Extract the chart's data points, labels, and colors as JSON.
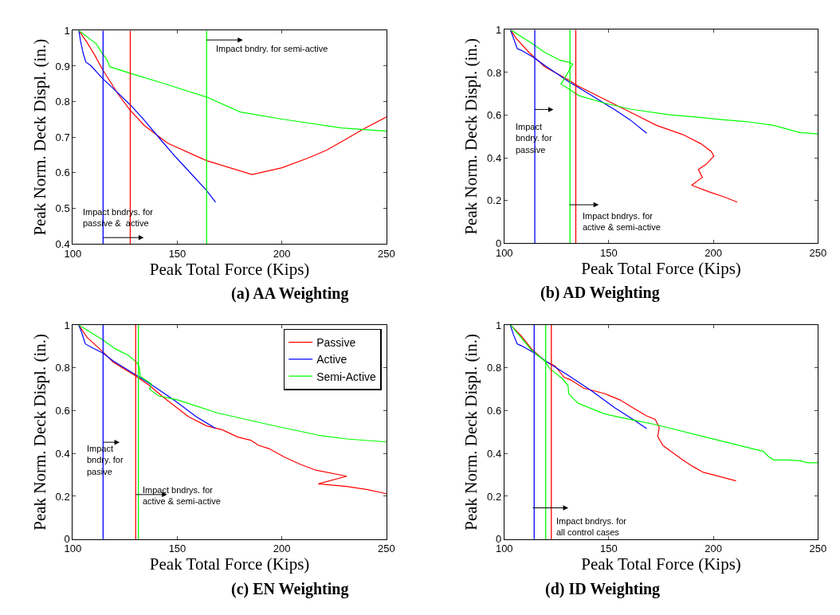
{
  "chart_data": [
    {
      "type": "line",
      "title": "(a) AA Weighting",
      "xlabel": "Peak Total Force (Kips)",
      "ylabel": "Peak Norm. Deck Displ. (in.)",
      "xlim": [
        100,
        250
      ],
      "xticks": [
        100,
        150,
        200,
        250
      ],
      "ylim": [
        0.4,
        1
      ],
      "yticks": [
        0.4,
        0.5,
        0.6,
        0.7,
        0.8,
        0.9,
        1
      ],
      "grid": false,
      "marker": "none",
      "line_style": "solid",
      "series": [
        {
          "color": "#ff0000",
          "x": [
            102.9,
            106.8,
            110.6,
            114.3,
            121.7,
            127.3,
            134.2,
            145.4,
            164.0,
            185.7,
            200.0,
            212.4,
            221.2,
            231.1,
            238.6,
            250
          ],
          "values": [
            1.0,
            0.967,
            0.93,
            0.89,
            0.821,
            0.777,
            0.733,
            0.683,
            0.634,
            0.595,
            0.614,
            0.641,
            0.663,
            0.696,
            0.722,
            0.757
          ]
        },
        {
          "color": "#0000ff",
          "x": [
            102.9,
            103.7,
            104.9,
            106.2,
            108.7,
            114.3,
            121.7,
            128.0,
            134.2,
            141.6,
            149.1,
            156.5,
            164.0,
            168.3
          ],
          "values": [
            1.0,
            0.971,
            0.938,
            0.912,
            0.901,
            0.865,
            0.824,
            0.788,
            0.748,
            0.696,
            0.645,
            0.598,
            0.55,
            0.517
          ]
        },
        {
          "color": "#00ff00",
          "x": [
            102.9,
            111.2,
            114.3,
            116.2,
            117.8,
            128.0,
            144.1,
            164.0,
            180.1,
            200.0,
            228.6,
            250
          ],
          "values": [
            1.0,
            0.963,
            0.934,
            0.92,
            0.898,
            0.879,
            0.85,
            0.813,
            0.771,
            0.751,
            0.726,
            0.717
          ]
        }
      ],
      "ref_lines": [
        {
          "axis": "x",
          "value": 114.5,
          "color": "#0000ff"
        },
        {
          "axis": "x",
          "value": 127.5,
          "color": "#ff0000"
        },
        {
          "axis": "x",
          "value": 164.0,
          "color": "#00ff00"
        }
      ],
      "annotations": [
        "Impact bndry. for semi-active",
        "Impact bndrys. for\npassive &  active"
      ]
    },
    {
      "type": "line",
      "title": "(b) AD Weighting",
      "xlabel": "Peak Total Force (Kips)",
      "ylabel": "Peak Norm. Deck Displ. (in.)",
      "xlim": [
        100,
        250
      ],
      "xticks": [
        100,
        150,
        200,
        250
      ],
      "ylim": [
        0,
        1
      ],
      "yticks": [
        0,
        0.2,
        0.4,
        0.6,
        0.8,
        1
      ],
      "grid": false,
      "marker": "none",
      "line_style": "solid",
      "series": [
        {
          "color": "#ff0000",
          "x": [
            103.1,
            105.6,
            111.8,
            119.3,
            130.5,
            135.5,
            148,
            160.4,
            172.8,
            185.3,
            194,
            199,
            200.2,
            196.5,
            192.8,
            194.7,
            189.6,
            197.7,
            205.2,
            211.4
          ],
          "values": [
            0.998,
            0.961,
            0.894,
            0.827,
            0.766,
            0.735,
            0.674,
            0.613,
            0.552,
            0.509,
            0.466,
            0.429,
            0.408,
            0.369,
            0.345,
            0.308,
            0.271,
            0.241,
            0.216,
            0.192
          ]
        },
        {
          "color": "#0000ff",
          "x": [
            102.9,
            104.4,
            106.2,
            108.1,
            114.3,
            119.3,
            130.5,
            141.7,
            152.9,
            160.4,
            168.1
          ],
          "values": [
            1.0,
            0.961,
            0.912,
            0.904,
            0.869,
            0.833,
            0.759,
            0.692,
            0.625,
            0.576,
            0.515
          ]
        },
        {
          "color": "#00ff00",
          "x": [
            103.1,
            113.1,
            119.3,
            126.8,
            131.1,
            132.7,
            129.9,
            127.1,
            130.5,
            135.5,
            148,
            160.4,
            179,
            191.5,
            204,
            216.4,
            228.8,
            241.3,
            250
          ],
          "values": [
            1.0,
            0.937,
            0.894,
            0.857,
            0.847,
            0.839,
            0.79,
            0.745,
            0.725,
            0.692,
            0.656,
            0.628,
            0.601,
            0.591,
            0.579,
            0.569,
            0.552,
            0.518,
            0.512
          ]
        }
      ],
      "ref_lines": [
        {
          "axis": "x",
          "value": 114.6,
          "color": "#0000ff"
        },
        {
          "axis": "x",
          "value": 131.4,
          "color": "#00ff00"
        },
        {
          "axis": "x",
          "value": 134.2,
          "color": "#ff0000"
        }
      ],
      "annotations": [
        "Impact\nbndry. for\npassive",
        "Impact bndrys. for\nactive & semi-active"
      ]
    },
    {
      "type": "line",
      "title": "(c) EN Weighting",
      "xlabel": "Peak Total Force (Kips)",
      "ylabel": "Peak Norm. Deck Displ. (in.)",
      "xlim": [
        100,
        250
      ],
      "xticks": [
        100,
        150,
        200,
        250
      ],
      "ylim": [
        0,
        1
      ],
      "yticks": [
        0,
        0.2,
        0.4,
        0.6,
        0.8,
        1
      ],
      "grid": false,
      "legend": "top right",
      "marker": "none",
      "line_style": "solid",
      "series": [
        {
          "name": "Passive",
          "color": "#ff0000",
          "x": [
            102.9,
            106.8,
            114.3,
            119.3,
            130.4,
            136.6,
            144.1,
            155.3,
            164.0,
            171.4,
            178.9,
            185.1,
            188.8,
            193.8,
            201.2,
            208.7,
            216.2,
            231.0,
            217.4,
            231.0,
            241.0,
            250
          ],
          "values": [
            1.0,
            0.943,
            0.876,
            0.827,
            0.76,
            0.718,
            0.657,
            0.572,
            0.529,
            0.511,
            0.477,
            0.462,
            0.438,
            0.423,
            0.383,
            0.35,
            0.322,
            0.294,
            0.258,
            0.246,
            0.231,
            0.212
          ]
        },
        {
          "name": "Active",
          "color": "#0000ff",
          "x": [
            102.9,
            104.4,
            106.0,
            109.3,
            114.3,
            119.3,
            130.4,
            139.1,
            149.1,
            159.0,
            168.3
          ],
          "values": [
            1.0,
            0.961,
            0.912,
            0.894,
            0.87,
            0.833,
            0.766,
            0.712,
            0.645,
            0.572,
            0.517
          ]
        },
        {
          "name": "Semi-Active",
          "color": "#00ff00",
          "x": [
            102.9,
            114.3,
            120.5,
            126.7,
            130.4,
            131.7,
            132.3,
            137.7,
            136.7,
            141.1,
            150.3,
            169.0,
            193.8,
            218.7,
            231.0,
            250
          ],
          "values": [
            1.0,
            0.931,
            0.888,
            0.858,
            0.827,
            0.809,
            0.76,
            0.724,
            0.7,
            0.669,
            0.65,
            0.59,
            0.535,
            0.483,
            0.468,
            0.454
          ]
        }
      ],
      "ref_lines": [
        {
          "axis": "x",
          "value": 114.5,
          "color": "#0000ff"
        },
        {
          "axis": "x",
          "value": 130.1,
          "color": "#ff0000"
        },
        {
          "axis": "x",
          "value": 131.4,
          "color": "#00ff00"
        }
      ],
      "annotations": [
        "Impact\nbndry. for\npasive",
        "Impact bndrys. for\nactive & semi-active"
      ]
    },
    {
      "type": "line",
      "title": "(d) ID Weighting",
      "xlabel": "Peak Total Force (Kips)",
      "ylabel": "Peak Norm. Deck Displ. (in.)",
      "xlim": [
        100,
        250
      ],
      "xticks": [
        100,
        150,
        200,
        250
      ],
      "ylim": [
        0,
        1
      ],
      "yticks": [
        0,
        0.2,
        0.4,
        0.6,
        0.8,
        1
      ],
      "grid": false,
      "marker": "none",
      "line_style": "solid",
      "series": [
        {
          "color": "#ff0000",
          "x": [
            103.1,
            108.1,
            113.1,
            119.3,
            124.3,
            128.6,
            131.7,
            138,
            147.9,
            155.4,
            161.6,
            167.8,
            172.2,
            174.1,
            173.4,
            175.9,
            180.3,
            185.3,
            190.2,
            195.2,
            201.5,
            210.8
          ],
          "values": [
            1.0,
            0.949,
            0.888,
            0.833,
            0.809,
            0.756,
            0.744,
            0.705,
            0.68,
            0.65,
            0.613,
            0.577,
            0.559,
            0.522,
            0.479,
            0.437,
            0.406,
            0.37,
            0.339,
            0.312,
            0.296,
            0.272
          ]
        },
        {
          "color": "#0000ff",
          "x": [
            102.9,
            104.4,
            106.2,
            108.1,
            114.3,
            120.5,
            130.5,
            141.7,
            152.9,
            161.6,
            168.1
          ],
          "values": [
            1.0,
            0.955,
            0.912,
            0.904,
            0.87,
            0.827,
            0.766,
            0.693,
            0.613,
            0.559,
            0.516
          ]
        },
        {
          "color": "#00ff00",
          "x": [
            103.1,
            113.1,
            119.3,
            121.8,
            128.0,
            130.5,
            130.8,
            132.4,
            135.5,
            148,
            160.4,
            172.8,
            197.7,
            223.9,
            226.4,
            228.8,
            235.1,
            241.3,
            245.1,
            250
          ],
          "values": [
            1.0,
            0.882,
            0.833,
            0.796,
            0.748,
            0.717,
            0.68,
            0.662,
            0.634,
            0.585,
            0.559,
            0.534,
            0.473,
            0.41,
            0.385,
            0.37,
            0.37,
            0.366,
            0.357,
            0.357
          ]
        }
      ],
      "ref_lines": [
        {
          "axis": "x",
          "value": 114.3,
          "color": "#0000ff"
        },
        {
          "axis": "x",
          "value": 119.8,
          "color": "#00ff00"
        },
        {
          "axis": "x",
          "value": 122.5,
          "color": "#ff0000"
        }
      ],
      "annotations": [
        "Impact bndrys. for\nall control cases"
      ]
    }
  ]
}
